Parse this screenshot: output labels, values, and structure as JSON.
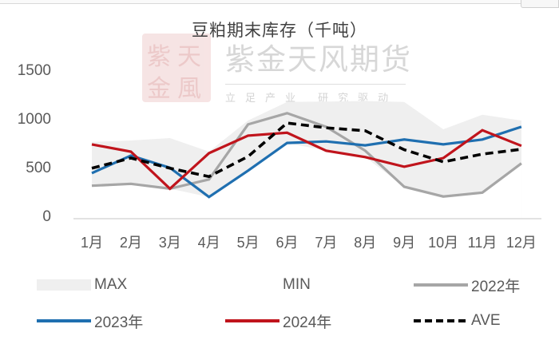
{
  "window": {
    "corner_tab_text": ""
  },
  "watermark": {
    "seal_chars": [
      "紫",
      "天",
      "金",
      "風"
    ],
    "name": "紫金天风期货",
    "slogan": "立足产业 研究驱动"
  },
  "colors": {
    "max_band": "#efefef",
    "min_band": "#ffffff",
    "y2022": "#a6a6a6",
    "y2023": "#1f6fb0",
    "y2024": "#c0141c",
    "ave": "#000000",
    "axis": "#d9d9d9"
  },
  "chart_data": {
    "type": "line",
    "title": "豆粕期末库存（千吨）",
    "xlabel": "",
    "ylabel": "",
    "ylim": [
      0,
      1500
    ],
    "yticks": [
      0,
      500,
      1000,
      1500
    ],
    "grid": false,
    "legend_position": "bottom",
    "categories": [
      "1月",
      "2月",
      "3月",
      "4月",
      "5月",
      "6月",
      "7月",
      "8月",
      "9月",
      "10月",
      "11月",
      "12月"
    ],
    "series": [
      {
        "name": "MAX",
        "style": "area",
        "color": "#efefef",
        "values": [
          780,
          795,
          820,
          680,
          1000,
          1190,
          1195,
          1200,
          1190,
          910,
          1060,
          1000
        ]
      },
      {
        "name": "MIN",
        "style": "area",
        "color": "#ffffff",
        "values": [
          330,
          350,
          300,
          215,
          485,
          770,
          690,
          625,
          320,
          220,
          260,
          560
        ]
      },
      {
        "name": "2022年",
        "style": "line",
        "color": "#a6a6a6",
        "values": [
          330,
          350,
          300,
          395,
          960,
          1075,
          935,
          690,
          320,
          220,
          260,
          560
        ]
      },
      {
        "name": "2023年",
        "style": "line",
        "color": "#1f6fb0",
        "values": [
          460,
          640,
          515,
          215,
          485,
          770,
          785,
          745,
          805,
          755,
          805,
          935
        ]
      },
      {
        "name": "2024年",
        "style": "line",
        "color": "#c0141c",
        "values": [
          755,
          680,
          300,
          665,
          845,
          875,
          690,
          625,
          525,
          615,
          900,
          740
        ]
      },
      {
        "name": "AVE",
        "style": "dashed",
        "color": "#000000",
        "values": [
          510,
          615,
          510,
          425,
          630,
          975,
          925,
          895,
          700,
          575,
          655,
          705
        ]
      }
    ]
  },
  "legend": [
    {
      "label": "MAX",
      "kind": "band",
      "color": "#efefef"
    },
    {
      "label": "MIN",
      "kind": "none",
      "color": "#ffffff"
    },
    {
      "label": "2022年",
      "kind": "line",
      "color": "#a6a6a6"
    },
    {
      "label": "2023年",
      "kind": "line",
      "color": "#1f6fb0"
    },
    {
      "label": "2024年",
      "kind": "line",
      "color": "#c0141c"
    },
    {
      "label": "AVE",
      "kind": "dashed",
      "color": "#000000"
    }
  ]
}
